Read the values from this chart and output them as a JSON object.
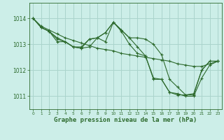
{
  "background_color": "#cceee8",
  "grid_color": "#aad4cc",
  "line_color": "#2d6a2d",
  "title": "Graphe pression niveau de la mer (hPa)",
  "ylabel_ticks": [
    1011,
    1012,
    1013,
    1014
  ],
  "xlim": [
    -0.5,
    23.5
  ],
  "ylim": [
    1010.5,
    1014.6
  ],
  "series": [
    {
      "x": [
        0,
        1,
        2,
        3,
        4,
        5,
        6,
        7,
        8,
        9,
        10,
        11,
        12,
        13,
        14,
        15,
        16,
        17,
        18,
        19,
        20,
        21,
        22,
        23
      ],
      "y": [
        1014.0,
        1013.7,
        1013.55,
        1013.4,
        1013.25,
        1013.15,
        1013.05,
        1012.95,
        1012.85,
        1012.8,
        1012.75,
        1012.65,
        1012.6,
        1012.55,
        1012.5,
        1012.45,
        1012.4,
        1012.35,
        1012.25,
        1012.2,
        1012.15,
        1012.15,
        1012.25,
        1012.35
      ]
    },
    {
      "x": [
        0,
        1,
        2,
        3,
        4,
        5,
        6,
        7,
        8,
        9,
        10,
        11,
        12,
        13,
        14,
        15,
        16,
        17,
        18,
        19,
        20,
        21,
        22,
        23
      ],
      "y": [
        1014.0,
        1013.65,
        1013.5,
        1013.25,
        1013.1,
        1012.9,
        1012.85,
        1013.2,
        1013.25,
        1013.45,
        1013.85,
        1013.55,
        1013.25,
        1013.25,
        1013.2,
        1013.0,
        1012.6,
        1011.65,
        1011.35,
        1011.05,
        1011.1,
        1012.0,
        1012.35,
        1012.35
      ]
    },
    {
      "x": [
        0,
        1,
        2,
        3,
        4,
        5,
        6,
        7,
        8,
        9,
        10,
        11,
        12,
        13,
        14,
        15,
        16,
        17,
        18,
        19,
        20,
        21,
        22,
        23
      ],
      "y": [
        1014.0,
        1013.65,
        1013.5,
        1013.2,
        1013.1,
        1012.9,
        1012.9,
        1013.2,
        1013.25,
        1013.1,
        1013.85,
        1013.5,
        1013.0,
        1012.65,
        1012.55,
        1011.7,
        1011.65,
        1011.15,
        1011.05,
        1011.05,
        1011.05,
        1012.0,
        1012.35,
        1012.35
      ]
    },
    {
      "x": [
        0,
        1,
        2,
        3,
        4,
        5,
        6,
        7,
        8,
        9,
        10,
        11,
        12,
        13,
        14,
        15,
        16,
        17,
        18,
        19,
        20,
        21,
        22,
        23
      ],
      "y": [
        1014.0,
        1013.65,
        1013.5,
        1013.1,
        1013.1,
        1012.9,
        1012.85,
        1012.9,
        1013.25,
        1013.45,
        1013.85,
        1013.55,
        1013.25,
        1012.9,
        1012.55,
        1011.65,
        1011.65,
        1011.15,
        1011.1,
        1011.0,
        1011.0,
        1011.7,
        1012.2,
        1012.35
      ]
    }
  ]
}
